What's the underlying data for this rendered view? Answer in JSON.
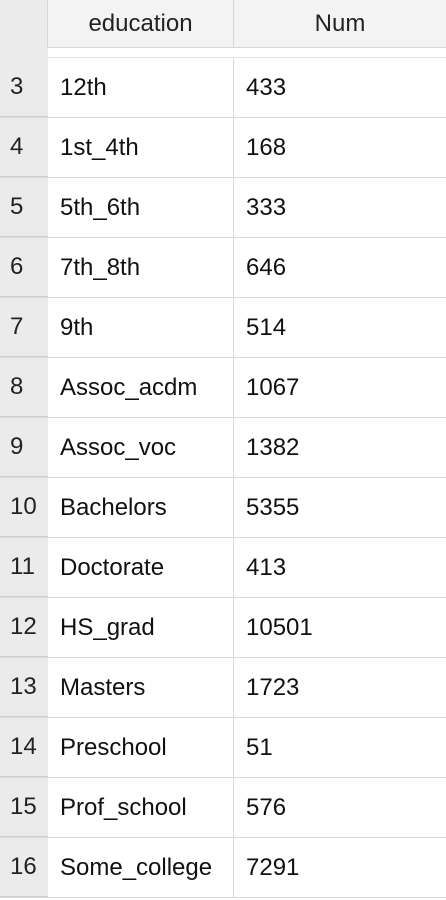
{
  "table": {
    "columns": [
      "education",
      "Num"
    ],
    "rows": [
      {
        "index": "3",
        "education": "12th",
        "num": "433"
      },
      {
        "index": "4",
        "education": "1st_4th",
        "num": "168"
      },
      {
        "index": "5",
        "education": "5th_6th",
        "num": "333"
      },
      {
        "index": "6",
        "education": "7th_8th",
        "num": "646"
      },
      {
        "index": "7",
        "education": "9th",
        "num": "514"
      },
      {
        "index": "8",
        "education": "Assoc_acdm",
        "num": "1067"
      },
      {
        "index": "9",
        "education": "Assoc_voc",
        "num": "1382"
      },
      {
        "index": "10",
        "education": "Bachelors",
        "num": "5355"
      },
      {
        "index": "11",
        "education": "Doctorate",
        "num": "413"
      },
      {
        "index": "12",
        "education": "HS_grad",
        "num": "10501"
      },
      {
        "index": "13",
        "education": "Masters",
        "num": "1723"
      },
      {
        "index": "14",
        "education": "Preschool",
        "num": "51"
      },
      {
        "index": "15",
        "education": "Prof_school",
        "num": "576"
      },
      {
        "index": "16",
        "education": "Some_college",
        "num": "7291"
      }
    ]
  }
}
